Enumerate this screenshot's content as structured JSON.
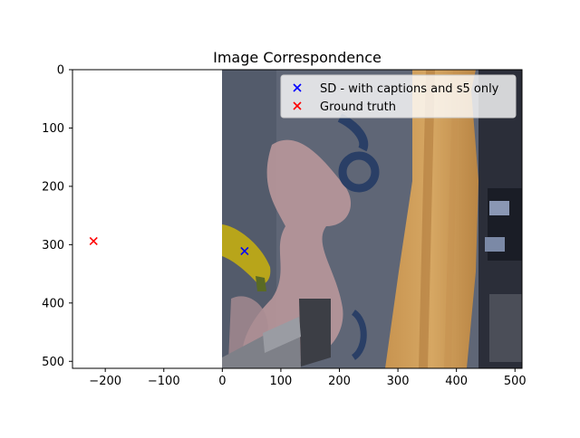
{
  "chart_data": {
    "type": "scatter",
    "title": "Image Correspondence",
    "xlabel": "",
    "ylabel": "",
    "xlim": [
      -256,
      512
    ],
    "ylim": [
      512,
      0
    ],
    "x_ticks": [
      -200,
      -100,
      0,
      100,
      200,
      300,
      400,
      500
    ],
    "y_ticks": [
      0,
      100,
      200,
      300,
      400,
      500
    ],
    "x_tick_labels": [
      "−200",
      "−100",
      "0",
      "100",
      "200",
      "300",
      "400",
      "500"
    ],
    "y_tick_labels": [
      "0",
      "100",
      "200",
      "300",
      "400",
      "500"
    ],
    "image_extent": [
      0,
      512,
      512,
      0
    ],
    "image_description": "indoor scene image: blue-grey patterned wall, wooden panel edge, yellow banana, grey object",
    "legend_position": "upper right",
    "series": [
      {
        "name": "SD - with captions and s5 only",
        "marker": "x",
        "color": "#0000ff",
        "points": [
          {
            "x": 38,
            "y": 311
          }
        ]
      },
      {
        "name": "Ground truth",
        "marker": "x",
        "color": "#ff0000",
        "points": [
          {
            "x": -220,
            "y": 294
          }
        ]
      }
    ]
  }
}
